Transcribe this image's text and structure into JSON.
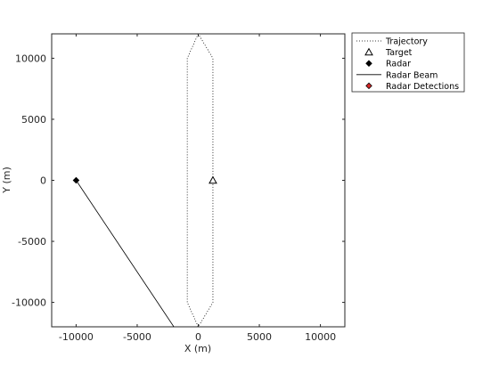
{
  "chart_data": {
    "type": "line",
    "xlabel": "X (m)",
    "ylabel": "Y (m)",
    "xlim": [
      -12000,
      12000
    ],
    "ylim": [
      -12000,
      12000
    ],
    "xticks": [
      -10000,
      -5000,
      0,
      5000,
      10000
    ],
    "yticks": [
      -10000,
      -5000,
      0,
      5000,
      10000
    ],
    "x_tick_labels": [
      "-10000",
      "-5000",
      "0",
      "5000",
      "10000"
    ],
    "y_tick_labels": [
      "-10000",
      "-5000",
      "0",
      "5000",
      "10000"
    ],
    "grid": false,
    "legend_position": "top-right outside",
    "series": [
      {
        "name": "Trajectory",
        "style": "dotted",
        "color": "#000000",
        "x": [
          0,
          -900,
          -900,
          0,
          1200,
          1200,
          0
        ],
        "y": [
          12000,
          10000,
          -10000,
          -12000,
          -10000,
          10000,
          12000
        ]
      },
      {
        "name": "Target",
        "marker": "triangle-open",
        "color": "#000000",
        "x": [
          1200
        ],
        "y": [
          0
        ]
      },
      {
        "name": "Radar",
        "marker": "diamond-filled",
        "color": "#000000",
        "x": [
          -10000
        ],
        "y": [
          0
        ]
      },
      {
        "name": "Radar Beam",
        "style": "solid",
        "color": "#000000",
        "x": [
          -10000,
          -2000
        ],
        "y": [
          0,
          -12000
        ]
      },
      {
        "name": "Radar Detections",
        "marker": "diamond-filled",
        "color": "#d62728",
        "x": [],
        "y": []
      }
    ]
  }
}
